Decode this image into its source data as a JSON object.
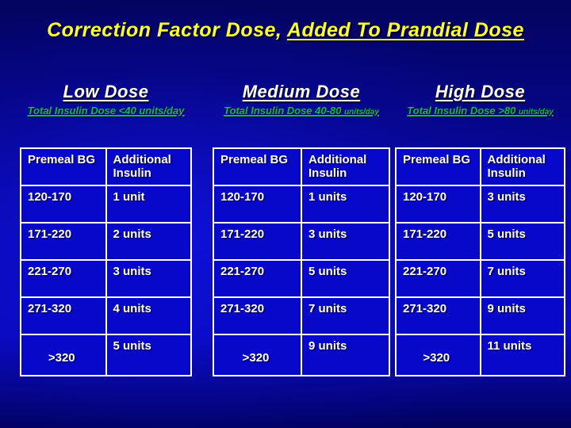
{
  "title": {
    "plain": "Correction Factor Dose, ",
    "underlined": "Added To Prandial Dose"
  },
  "columns": [
    {
      "id": "low",
      "heading": "Low Dose",
      "subtitle_main": "Total Insulin Dose <40 units/day",
      "subtitle_small": "",
      "header": [
        "Premeal BG",
        "Additional Insulin"
      ],
      "rows": [
        [
          "120-170",
          "1 unit"
        ],
        [
          "171-220",
          "2 units"
        ],
        [
          "221-270",
          "3 units"
        ],
        [
          "271-320",
          "4 units"
        ],
        [
          ">320",
          "5 units"
        ]
      ]
    },
    {
      "id": "medium",
      "heading": "Medium Dose",
      "subtitle_main": "Total Insulin Dose 40-80 ",
      "subtitle_small": "units/day",
      "header": [
        "Premeal BG",
        "Additional Insulin"
      ],
      "rows": [
        [
          "120-170",
          "1 units"
        ],
        [
          "171-220",
          "3 units"
        ],
        [
          "221-270",
          "5 units"
        ],
        [
          "271-320",
          "7 units"
        ],
        [
          ">320",
          "9 units"
        ]
      ]
    },
    {
      "id": "high",
      "heading": "High Dose",
      "subtitle_main": "Total Insulin Dose >80 ",
      "subtitle_small": "units/day",
      "header": [
        "Premeal BG",
        "Additional Insulin"
      ],
      "rows": [
        [
          "120-170",
          "3 units"
        ],
        [
          "171-220",
          "5 units"
        ],
        [
          "221-270",
          "7 units"
        ],
        [
          "271-320",
          "9 units"
        ],
        [
          ">320",
          "11 units"
        ]
      ]
    }
  ],
  "colors": {
    "background_top": "#03035f",
    "background_bright": "#0a0ac2",
    "background_bottom": "#01015c",
    "table_fill": "#0808ca",
    "table_border": "#ffffff",
    "title_text": "#ffff2e",
    "heading_text": "#ffffff",
    "subtitle_text": "#00c050",
    "table_text": "#ffffff"
  }
}
